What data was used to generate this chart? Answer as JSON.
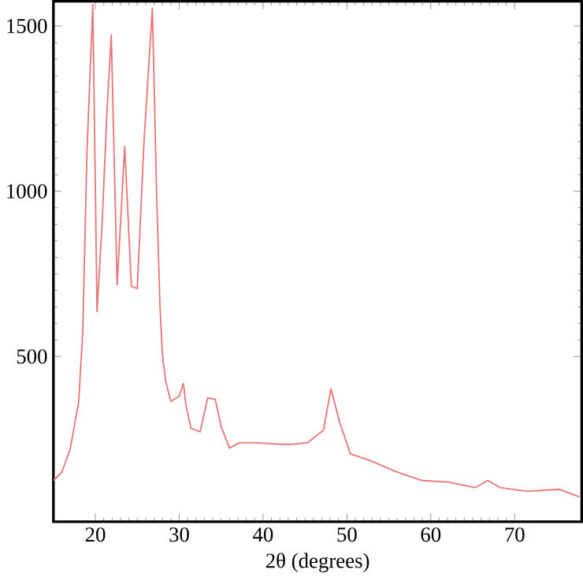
{
  "chart_data": {
    "type": "line",
    "xlabel": "2θ (degrees)",
    "xlim": [
      15,
      78
    ],
    "ylim": [
      0,
      1575
    ],
    "xticks": [
      20,
      30,
      40,
      50,
      60,
      70
    ],
    "yticks": [
      500,
      1000,
      1500
    ],
    "grid": false,
    "marker": "none",
    "line_style": "solid",
    "series": [
      {
        "color": "#e87878",
        "x": [
          15,
          16,
          17,
          18,
          18.5,
          19,
          19.7,
          20.2,
          20.8,
          21.4,
          21.9,
          22.6,
          23.5,
          24.3,
          25,
          25.8,
          26.8,
          27.3,
          27.7,
          28,
          28.4,
          29,
          30,
          30.5,
          30.8,
          31.4,
          32.5,
          33.4,
          34.3,
          35,
          36,
          37.2,
          39,
          42.3,
          43.4,
          45.3,
          47.2,
          48.1,
          49.1,
          50.4,
          52.8,
          55.8,
          58.9,
          62.1,
          65.3,
          66.8,
          68.3,
          71.5,
          75.3,
          77.7
        ],
        "values": [
          125,
          150,
          220,
          360,
          575,
          1120,
          1565,
          636,
          900,
          1250,
          1473,
          717,
          1136,
          712,
          706,
          1150,
          1554,
          1000,
          657,
          505,
          424,
          364,
          380,
          418,
          353,
          283,
          272,
          375,
          370,
          288,
          223,
          239,
          239,
          234,
          234,
          239,
          277,
          402,
          304,
          206,
          185,
          152,
          125,
          120,
          103,
          125,
          103,
          92,
          98,
          76
        ]
      }
    ]
  }
}
